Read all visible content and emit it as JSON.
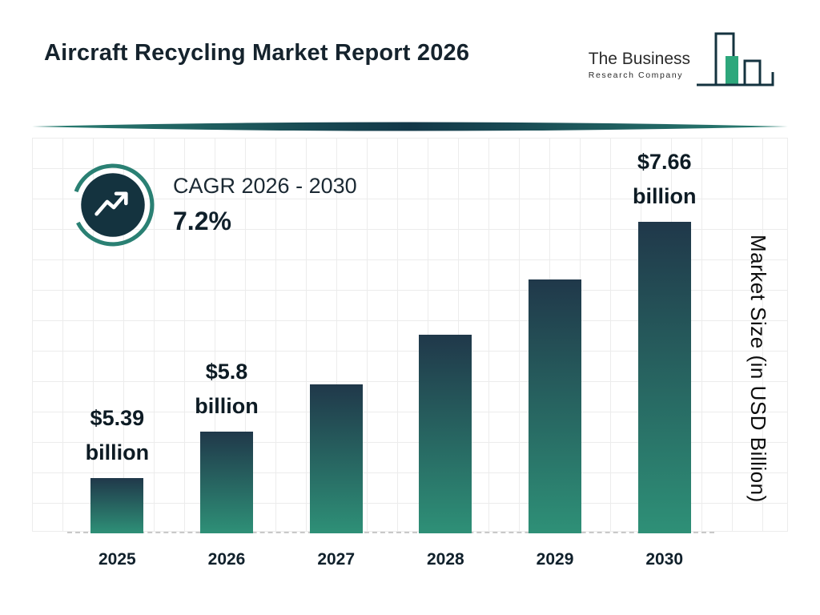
{
  "header": {
    "title": "Aircraft Recycling Market Report 2026",
    "logo": {
      "line1": "The Business",
      "line2": "Research Company"
    }
  },
  "cagr": {
    "label": "CAGR 2026 - 2030",
    "value": "7.2%"
  },
  "chart_data": {
    "type": "bar",
    "title": "Aircraft Recycling Market Report 2026",
    "categories": [
      "2025",
      "2026",
      "2027",
      "2028",
      "2029",
      "2030"
    ],
    "values": [
      5.39,
      5.8,
      6.22,
      6.66,
      7.15,
      7.66
    ],
    "labeled_points": [
      {
        "category": "2025",
        "amount": "$5.39",
        "unit": "billion"
      },
      {
        "category": "2026",
        "amount": "$5.8",
        "unit": "billion"
      },
      {
        "category": "2030",
        "amount": "$7.66",
        "unit": "billion"
      }
    ],
    "xlabel": "",
    "ylabel": "Market Size (in USD Billion)",
    "ylim": [
      4.9,
      7.9
    ],
    "grid": true,
    "legend": false,
    "colors": {
      "bar_gradient_top": "#20384a",
      "bar_gradient_bottom": "#2e9077",
      "accent_teal": "#2a8073",
      "dark_navy": "#14333f",
      "logo_green": "#2ea77c"
    }
  }
}
